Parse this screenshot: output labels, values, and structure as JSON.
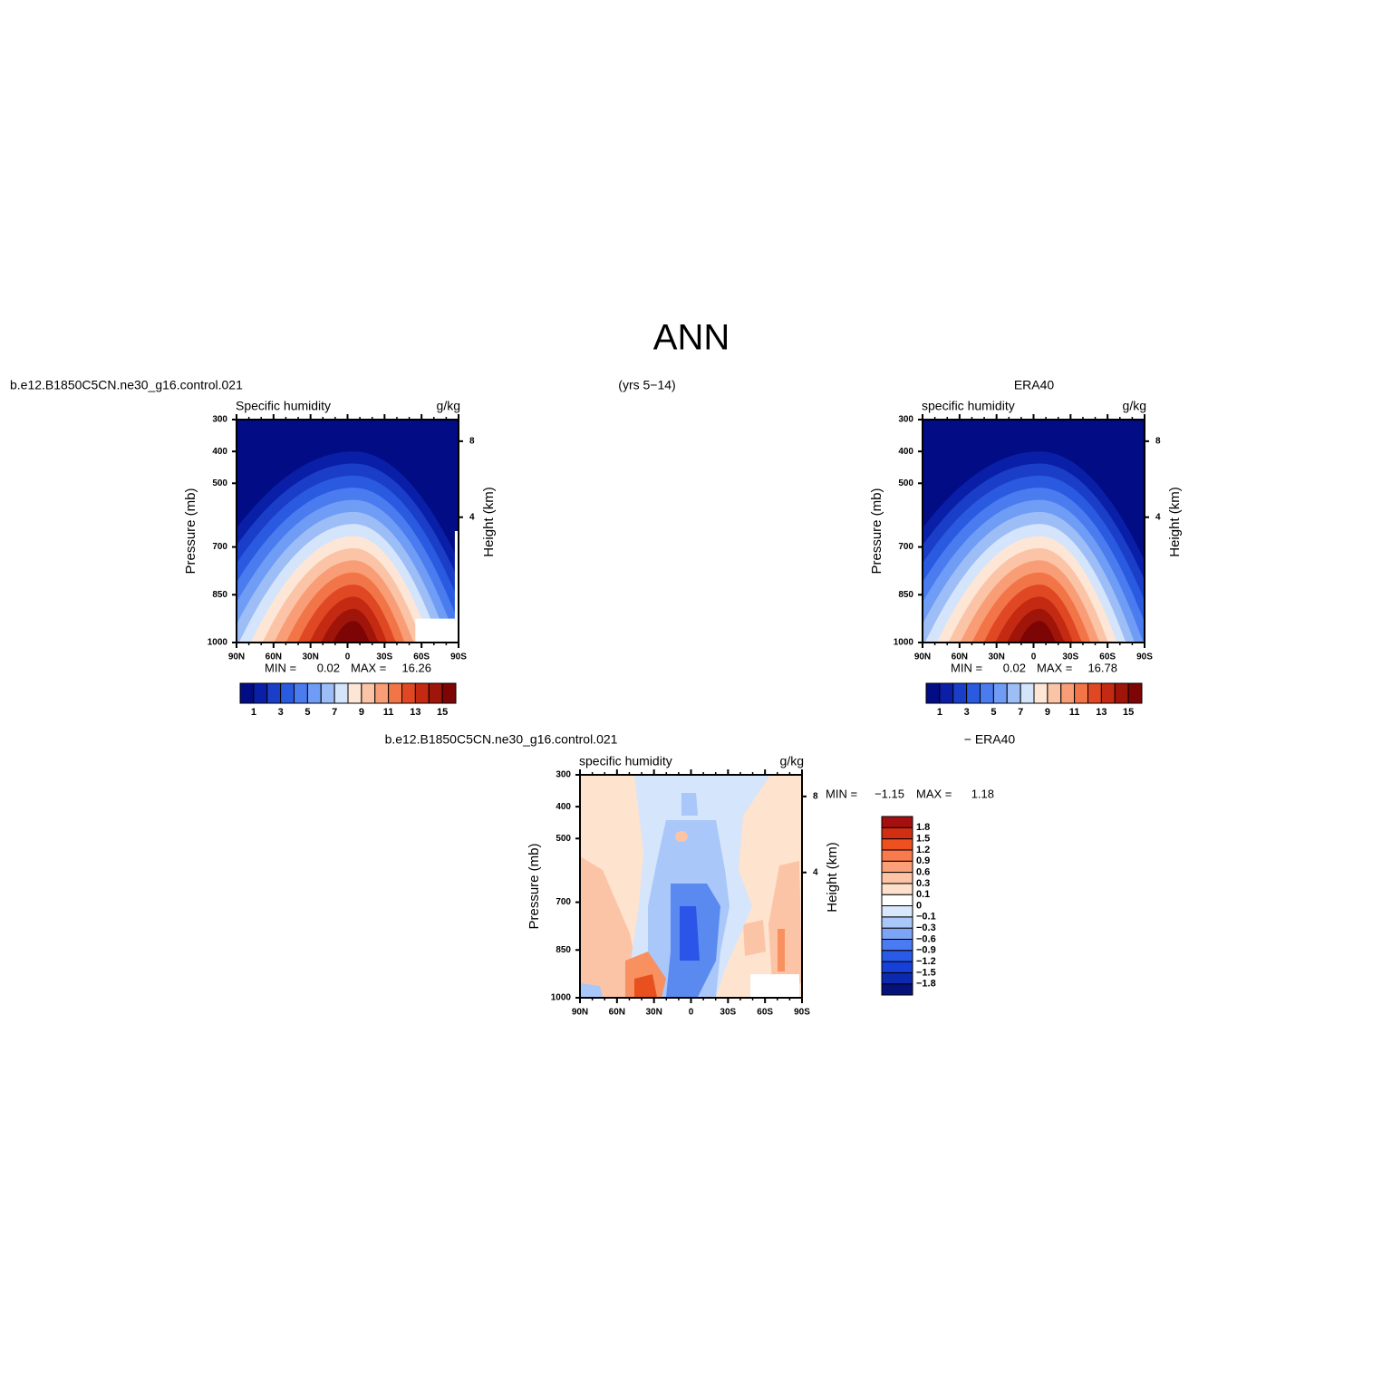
{
  "title": "ANN",
  "chart_data": [
    {
      "type": "contour",
      "left_string": "b.e12.B1850C5CN.ne30_g16.control.021",
      "center_string": "(yrs 5−14)",
      "title": "Specific humidity",
      "units": "g/kg",
      "ylabel": "Pressure (mb)",
      "y2label": "Height (km)",
      "xlim": [
        90,
        -90
      ],
      "xticks": [
        {
          "value": 90,
          "label": "90N"
        },
        {
          "value": 60,
          "label": "60N"
        },
        {
          "value": 30,
          "label": "30N"
        },
        0,
        {
          "value": -30,
          "label": "30S"
        },
        {
          "value": -60,
          "label": "60S"
        },
        {
          "value": -90,
          "label": "90S"
        }
      ],
      "ylim": [
        1000,
        300
      ],
      "yticks": [
        300,
        400,
        500,
        700,
        850,
        1000
      ],
      "y2ticks": [
        4,
        8
      ],
      "min_text": "MIN =",
      "min": 0.02,
      "max_text": "MAX =",
      "max": 16.26,
      "colorbar": {
        "levels": [
          1,
          2,
          3,
          4,
          5,
          6,
          7,
          8,
          9,
          10,
          11,
          12,
          13,
          14,
          15
        ],
        "colors": [
          "#020c84",
          "#0a1fa8",
          "#1a3ec8",
          "#2a5ae0",
          "#4a7cf0",
          "#6f9cf5",
          "#9dbdf7",
          "#d4e4fb",
          "#fde6d6",
          "#fbc4a6",
          "#f89d76",
          "#f27548",
          "#e04824",
          "#c42a12",
          "#a0150a",
          "#7e0505"
        ],
        "ticks": [
          1,
          3,
          5,
          7,
          9,
          11,
          13,
          15
        ]
      }
    },
    {
      "type": "contour",
      "right_string": "ERA40",
      "title": "specific humidity",
      "units": "g/kg",
      "ylabel": "Pressure (mb)",
      "y2label": "Height (km)",
      "xlim": [
        90,
        -90
      ],
      "xticks": [
        {
          "value": 90,
          "label": "90N"
        },
        {
          "value": 60,
          "label": "60N"
        },
        {
          "value": 30,
          "label": "30N"
        },
        0,
        {
          "value": -30,
          "label": "30S"
        },
        {
          "value": -60,
          "label": "60S"
        },
        {
          "value": -90,
          "label": "90S"
        }
      ],
      "ylim": [
        1000,
        300
      ],
      "yticks": [
        300,
        400,
        500,
        700,
        850,
        1000
      ],
      "y2ticks": [
        4,
        8
      ],
      "min_text": "MIN =",
      "min": 0.02,
      "max_text": "MAX =",
      "max": 16.78,
      "colorbar": {
        "levels": [
          1,
          2,
          3,
          4,
          5,
          6,
          7,
          8,
          9,
          10,
          11,
          12,
          13,
          14,
          15
        ],
        "colors": [
          "#020c84",
          "#0a1fa8",
          "#1a3ec8",
          "#2a5ae0",
          "#4a7cf0",
          "#6f9cf5",
          "#9dbdf7",
          "#d4e4fb",
          "#fde6d6",
          "#fbc4a6",
          "#f89d76",
          "#f27548",
          "#e04824",
          "#c42a12",
          "#a0150a",
          "#7e0505"
        ],
        "ticks": [
          1,
          3,
          5,
          7,
          9,
          11,
          13,
          15
        ]
      }
    },
    {
      "type": "difference",
      "left_string": "b.e12.B1850C5CN.ne30_g16.control.021",
      "right_string": "− ERA40",
      "title": "specific humidity",
      "units": "g/kg",
      "ylabel": "Pressure (mb)",
      "y2label": "Height (km)",
      "xlim": [
        90,
        -90
      ],
      "xticks": [
        {
          "value": 90,
          "label": "90N"
        },
        {
          "value": 60,
          "label": "60N"
        },
        {
          "value": 30,
          "label": "30N"
        },
        0,
        {
          "value": -30,
          "label": "30S"
        },
        {
          "value": -60,
          "label": "60S"
        },
        {
          "value": -90,
          "label": "90S"
        }
      ],
      "ylim": [
        1000,
        300
      ],
      "yticks": [
        300,
        400,
        500,
        700,
        850,
        1000
      ],
      "y2ticks": [
        4,
        8
      ],
      "min_text": "MIN =",
      "min": {
        "value": -1.15,
        "label": "−1.15"
      },
      "max_text": "MAX =",
      "max": 1.18,
      "colorbar": {
        "levels": [
          -1.8,
          -1.5,
          -1.2,
          -0.9,
          -0.6,
          -0.3,
          -0.1,
          0,
          0.1,
          0.3,
          0.6,
          0.9,
          1.2,
          1.5,
          1.8
        ],
        "colors": [
          "#05127a",
          "#0b2ab0",
          "#1640d8",
          "#2a5ae8",
          "#4b7bf2",
          "#7ea4f6",
          "#a9c7f9",
          "#d9e7fc",
          "#ffffff",
          "#fee1cc",
          "#fdc4a5",
          "#fca07a",
          "#f97a4c",
          "#ef5020",
          "#d22e12",
          "#a50f0f"
        ],
        "ticks": [
          {
            "value": -1.8,
            "label": "−1.8"
          },
          {
            "value": -1.5,
            "label": "−1.5"
          },
          {
            "value": -1.2,
            "label": "−1.2"
          },
          {
            "value": -0.9,
            "label": "−0.9"
          },
          {
            "value": -0.6,
            "label": "−0.6"
          },
          {
            "value": -0.3,
            "label": "−0.3"
          },
          {
            "value": -0.1,
            "label": "−0.1"
          },
          0,
          0.1,
          0.3,
          0.6,
          0.9,
          1.2,
          1.5,
          1.8
        ]
      }
    }
  ]
}
